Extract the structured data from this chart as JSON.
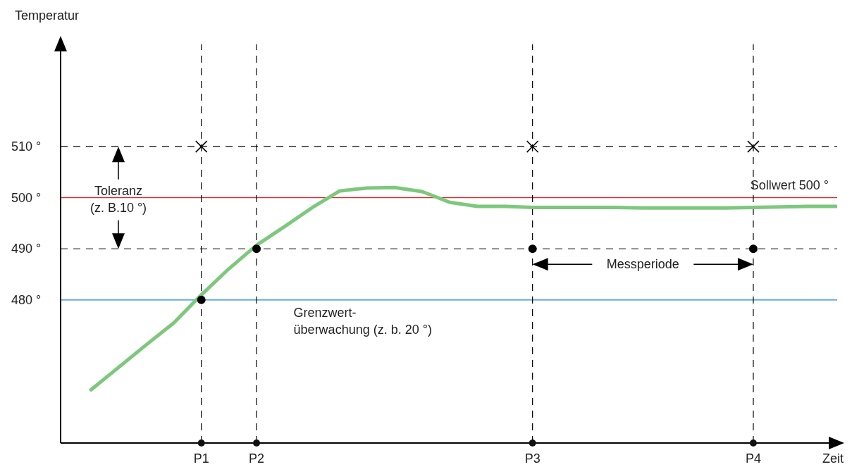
{
  "chart_data": {
    "type": "line",
    "ylabel": "Temperatur",
    "xlabel": "Zeit",
    "ylim": [
      452,
      530
    ],
    "categories": [
      null,
      null,
      null,
      null,
      null,
      "P1",
      null,
      "P2",
      null,
      null,
      null,
      null,
      null,
      null,
      null,
      null,
      null,
      "P3",
      null,
      null,
      null,
      null,
      null,
      null,
      null,
      "P4",
      null,
      null,
      null
    ],
    "yticks": [
      {
        "value": 480,
        "label": "480 °"
      },
      {
        "value": 490,
        "label": "490 °"
      },
      {
        "value": 500,
        "label": "500 °"
      },
      {
        "value": 510,
        "label": "510 °"
      }
    ],
    "series": [
      {
        "color": "#7dc87d",
        "marker": "none",
        "values": [
          null,
          462.4,
          466.8,
          471.2,
          475.5,
          481.0,
          486.1,
          490.7,
          494.3,
          498.0,
          501.3,
          501.9,
          502.0,
          501.2,
          499.1,
          498.3,
          498.3,
          498.1,
          498.1,
          498.1,
          498.1,
          498.0,
          498.0,
          498.0,
          498.0,
          498.1,
          498.2,
          498.3,
          498.3
        ]
      },
      {
        "type": "scatter",
        "marker": "circle",
        "color": "#000000",
        "x": [
          "P1",
          "P2",
          "P3",
          "P4"
        ],
        "values": [
          480,
          490,
          490,
          490
        ]
      },
      {
        "type": "scatter",
        "marker": "cross",
        "color": "#000000",
        "x": [
          "P1",
          "P3",
          "P4"
        ],
        "values": [
          510,
          510,
          510
        ]
      }
    ],
    "ref_lines": [
      {
        "axis": "y",
        "value": 510,
        "color": "#000000",
        "line_style": "dashed"
      },
      {
        "axis": "y",
        "value": 500,
        "color": "#e8262a",
        "line_style": "solid",
        "label": "Sollwert 500 °"
      },
      {
        "axis": "y",
        "value": 490,
        "color": "#000000",
        "line_style": "dashed"
      },
      {
        "axis": "y",
        "value": 480,
        "color": "#1a8ad4",
        "line_style": "solid"
      },
      {
        "axis": "x",
        "value": "P1",
        "color": "#000000",
        "line_style": "dashed"
      },
      {
        "axis": "x",
        "value": "P2",
        "color": "#000000",
        "line_style": "dashed"
      },
      {
        "axis": "x",
        "value": "P3",
        "color": "#000000",
        "line_style": "dashed"
      },
      {
        "axis": "x",
        "value": "P4",
        "color": "#000000",
        "line_style": "dashed"
      }
    ],
    "annotations": [
      "Toleranz\n(z. B.10 °)",
      "Grenzwert-\nüberwachung (z. b. 20 °)",
      "Messperiode"
    ]
  }
}
